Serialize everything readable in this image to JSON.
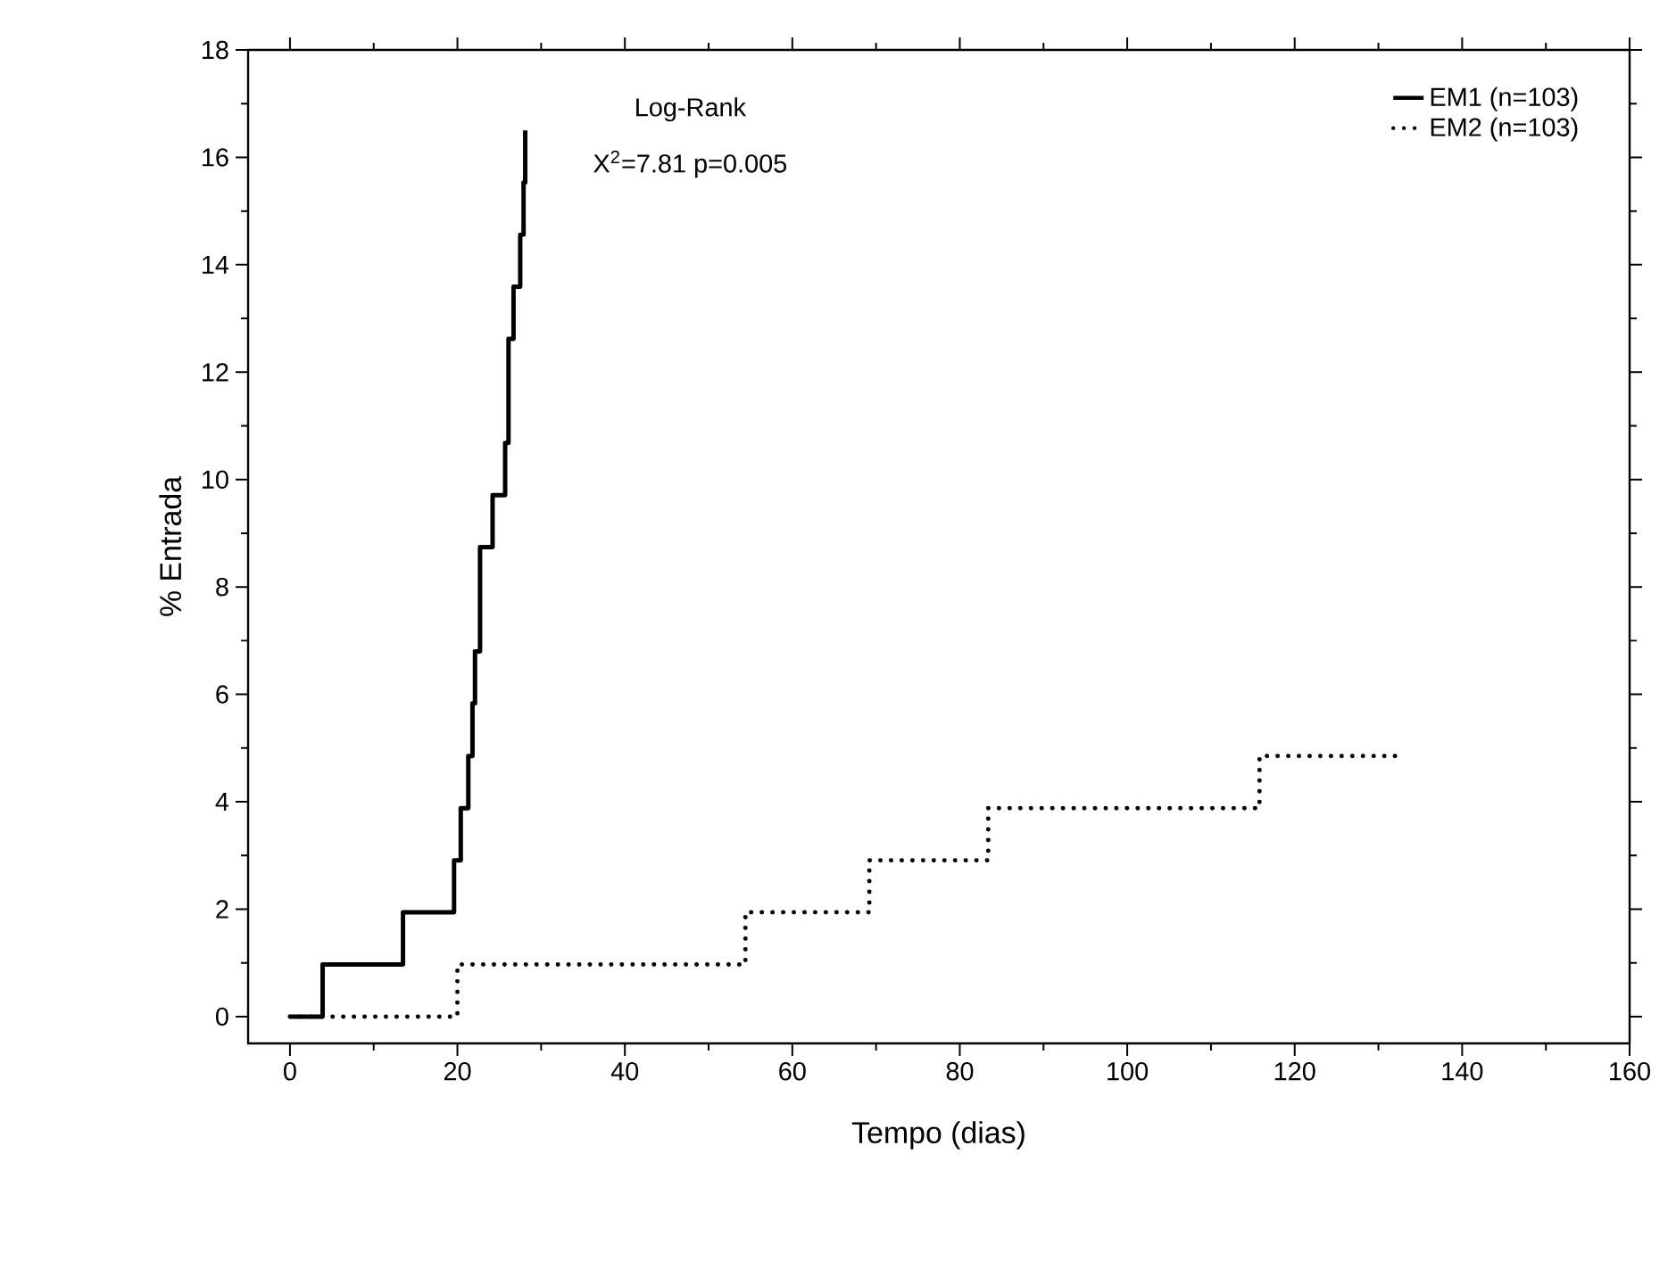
{
  "chart_data": {
    "type": "step",
    "xlabel": "Tempo (dias)",
    "ylabel": "% Entrada",
    "annotations": [
      "Log-Rank",
      "X$^{2}$=7.81     p=0.005"
    ],
    "series": [
      {
        "name": "EM1   (n=103)",
        "color": "#000000",
        "line_style": "solid",
        "x": [
          0,
          3.9,
          13.5,
          19.6,
          20.4,
          21.3,
          21.8,
          22.1,
          22.7,
          24.2,
          25.7,
          26.1,
          26.7,
          27.5,
          27.9,
          28.1
        ],
        "values": [
          0,
          0.97,
          1.94,
          2.91,
          3.88,
          4.85,
          5.83,
          6.8,
          8.74,
          9.71,
          10.68,
          12.62,
          13.59,
          14.56,
          15.53,
          16.5
        ]
      },
      {
        "name": "EM2   (n=103)",
        "color": "#000000",
        "line_style": "dotted",
        "x": [
          0,
          20.0,
          54.4,
          69.2,
          83.4,
          115.8,
          132.9
        ],
        "values": [
          0,
          0.97,
          1.94,
          2.91,
          3.88,
          4.85,
          4.85
        ]
      }
    ],
    "xlim": [
      -5,
      160
    ],
    "xticks": [
      0,
      20,
      40,
      60,
      80,
      100,
      120,
      140,
      160
    ],
    "ylim": [
      -0.5,
      18
    ],
    "yticks": [
      0,
      2,
      4,
      6,
      8,
      10,
      12,
      14,
      16,
      18
    ],
    "grid": false,
    "legend": "top right"
  }
}
